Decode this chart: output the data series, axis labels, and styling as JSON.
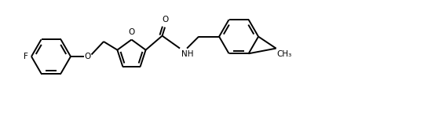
{
  "bg_color": "#ffffff",
  "line_color": "#000000",
  "line_width": 1.4,
  "font_size": 7.5,
  "figsize": [
    5.4,
    1.44
  ],
  "dpi": 100,
  "xlim": [
    0,
    10.8
  ],
  "ylim": [
    -1.44,
    1.44
  ]
}
